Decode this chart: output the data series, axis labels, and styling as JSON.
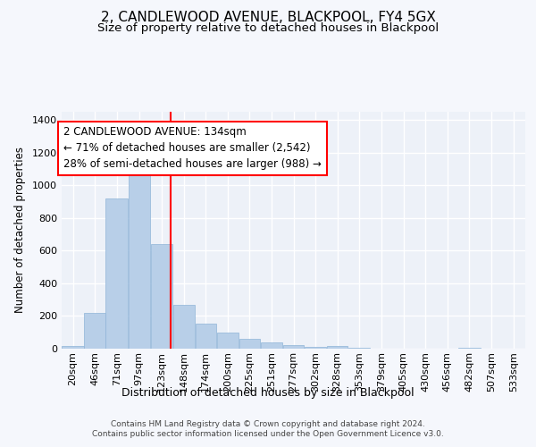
{
  "title": "2, CANDLEWOOD AVENUE, BLACKPOOL, FY4 5GX",
  "subtitle": "Size of property relative to detached houses in Blackpool",
  "xlabel": "Distribution of detached houses by size in Blackpool",
  "ylabel": "Number of detached properties",
  "footer_line1": "Contains HM Land Registry data © Crown copyright and database right 2024.",
  "footer_line2": "Contains public sector information licensed under the Open Government Licence v3.0.",
  "annotation_line1": "2 CANDLEWOOD AVENUE: 134sqm",
  "annotation_line2": "← 71% of detached houses are smaller (2,542)",
  "annotation_line3": "28% of semi-detached houses are larger (988) →",
  "bar_color": "#b8cfe8",
  "bar_edge_color": "#8fb4d8",
  "red_line_x": 134,
  "background_color": "#f5f7fc",
  "plot_background_color": "#edf1f8",
  "grid_color": "#ffffff",
  "categories": [
    "20sqm",
    "46sqm",
    "71sqm",
    "97sqm",
    "123sqm",
    "148sqm",
    "174sqm",
    "200sqm",
    "225sqm",
    "251sqm",
    "277sqm",
    "302sqm",
    "328sqm",
    "353sqm",
    "379sqm",
    "405sqm",
    "430sqm",
    "456sqm",
    "482sqm",
    "507sqm",
    "533sqm"
  ],
  "bin_edges": [
    7,
    33,
    58,
    84,
    110,
    136,
    162,
    187,
    213,
    238,
    264,
    289,
    315,
    340,
    366,
    392,
    417,
    443,
    468,
    494,
    520,
    546
  ],
  "values": [
    15,
    220,
    920,
    1065,
    640,
    270,
    155,
    100,
    60,
    37,
    20,
    10,
    15,
    8,
    2,
    0,
    0,
    0,
    5,
    0,
    0
  ],
  "ylim": [
    0,
    1450
  ],
  "yticks": [
    0,
    200,
    400,
    600,
    800,
    1000,
    1200,
    1400
  ],
  "title_fontsize": 11,
  "subtitle_fontsize": 9.5,
  "annotation_fontsize": 8.5,
  "ylabel_fontsize": 8.5,
  "xlabel_fontsize": 9,
  "footer_fontsize": 6.5,
  "tick_fontsize": 8
}
